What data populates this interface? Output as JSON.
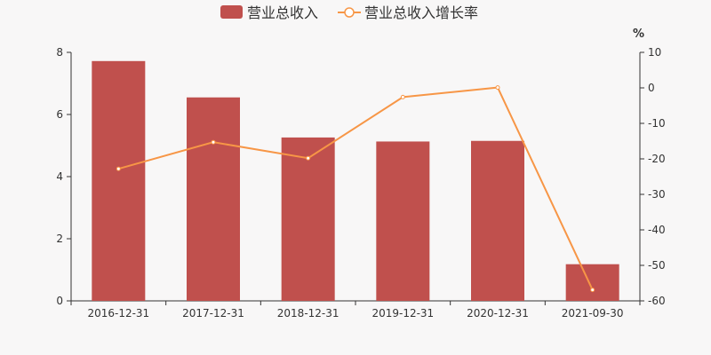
{
  "chart_data": {
    "type": "bar",
    "categories": [
      "2016-12-31",
      "2017-12-31",
      "2018-12-31",
      "2019-12-31",
      "2020-12-31",
      "2021-09-30"
    ],
    "series": [
      {
        "name": "营业总收入",
        "type": "bar",
        "axis": "left",
        "values": [
          7.72,
          6.55,
          5.26,
          5.13,
          5.15,
          1.18
        ],
        "color": "#c0504d"
      },
      {
        "name": "营业总收入增长率",
        "type": "line",
        "axis": "right",
        "values": [
          -22.8,
          -15.3,
          -19.8,
          -2.6,
          0.1,
          -56.9
        ],
        "color": "#f79646"
      }
    ],
    "y_left": {
      "ylim": [
        0,
        8
      ],
      "ticks": [
        "0",
        "2",
        "4",
        "6",
        "8"
      ]
    },
    "y_right": {
      "ylim": [
        -60,
        10
      ],
      "ticks": [
        "10",
        "0",
        "-10",
        "-20",
        "-30",
        "-40",
        "-50",
        "-60"
      ],
      "unit": "%"
    },
    "legend_position": "top-center",
    "grid": false
  }
}
